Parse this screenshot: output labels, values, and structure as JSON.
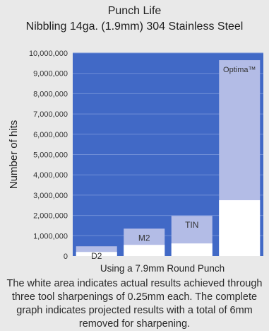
{
  "chart_data": {
    "type": "bar",
    "title": "Punch Life",
    "subtitle": "Nibbling 14ga. (1.9mm) 304 Stainless Steel",
    "xlabel": "Using a 7.9mm Round Punch",
    "ylabel": "Number of hits",
    "ylim": [
      0,
      10000000
    ],
    "ticks": [
      "0",
      "1,000,000",
      "2,000,000",
      "3,000,000",
      "4,000,000",
      "5,000,000",
      "6,000,000",
      "7,000,000",
      "8,000,000",
      "9,000,000",
      "10,000,000"
    ],
    "tick_values": [
      0,
      1000000,
      2000000,
      3000000,
      4000000,
      5000000,
      6000000,
      7000000,
      8000000,
      9000000,
      10000000
    ],
    "categories": [
      "D2",
      "M2",
      "TIN",
      "Optima™"
    ],
    "series": [
      {
        "values": [
          200000,
          550000,
          620000,
          2750000
        ]
      },
      {
        "values": [
          480000,
          1350000,
          1980000,
          9650000
        ]
      }
    ],
    "colors": {
      "plot_background": "#4169c6",
      "projected": "#b3bce6",
      "actual": "#ffffff",
      "grid": "#6f8ed6"
    },
    "grid": true
  },
  "note": "The white area indicates actual results achieved through three tool sharpenings of 0.25mm each. The complete graph indicates projected results with a total of 6mm removed for sharpening."
}
